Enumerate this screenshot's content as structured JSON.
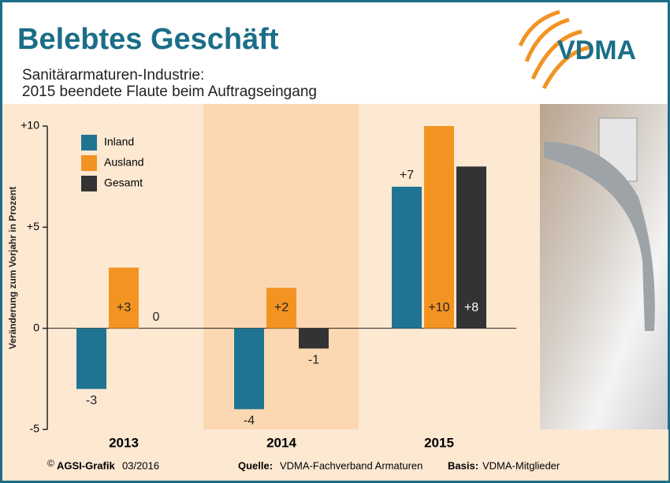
{
  "chart_data": {
    "type": "bar",
    "title": "Belebtes Geschäft",
    "subtitle": [
      "Sanitärarmaturen-Industrie:",
      "2015 beendete Flaute beim Auftragseingang"
    ],
    "logo": "VDMA",
    "y_label": "Veränderung zum Vorjahr in Prozent",
    "categories": [
      "2013",
      "2014",
      "2015"
    ],
    "series": [
      {
        "name": "Inland",
        "color": "#1f7591",
        "values": [
          -3,
          -4,
          7
        ],
        "value_labels": [
          "-3",
          "-4",
          "+7"
        ]
      },
      {
        "name": "Ausland",
        "color": "#f39322",
        "values": [
          3,
          2,
          10
        ],
        "value_labels": [
          "+3",
          "+2",
          "+10"
        ]
      },
      {
        "name": "Gesamt",
        "color": "#333333",
        "values": [
          0,
          -1,
          8
        ],
        "value_labels": [
          "0",
          "-1",
          "+8"
        ]
      }
    ],
    "ylim": [
      -5,
      10
    ],
    "yticks": [
      {
        "value": -5,
        "label": "-5"
      },
      0,
      {
        "value": 5,
        "label": "+5"
      },
      {
        "value": 10,
        "label": "+10"
      }
    ],
    "legend": "top-left",
    "footer": {
      "copyright": "©",
      "brand": "AGSI-Grafik",
      "date": "03/2016",
      "source_label": "Quelle:",
      "source": "VDMA-Fachverband Armaturen",
      "base_label": "Basis:",
      "base": "VDMA-Mitglieder"
    }
  }
}
